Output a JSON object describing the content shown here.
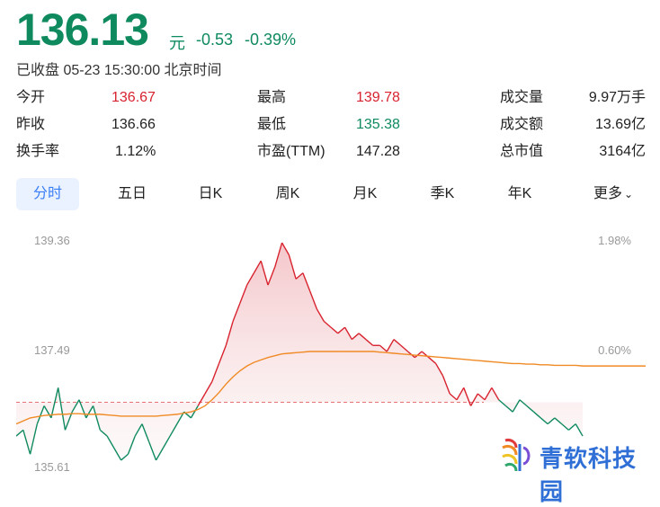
{
  "quote": {
    "price": "136.13",
    "unit": "元",
    "change": "-0.53",
    "change_pct": "-0.39%",
    "status": "已收盘 05-23 15:30:00 北京时间"
  },
  "stats": [
    [
      {
        "label": "今开",
        "value": "136.67"
      },
      {
        "label": "最高",
        "value": "139.78"
      },
      {
        "label": "成交量",
        "value": "9.97万手"
      }
    ],
    [
      {
        "label": "昨收",
        "value": "136.66"
      },
      {
        "label": "最低",
        "value": "135.38"
      },
      {
        "label": "成交额",
        "value": "13.69亿"
      }
    ],
    [
      {
        "label": "换手率",
        "value": "1.12%"
      },
      {
        "label": "市盈(TTM)",
        "value": "147.28"
      },
      {
        "label": "总市值",
        "value": "3164亿"
      }
    ]
  ],
  "tabs": [
    "分时",
    "五日",
    "日K",
    "周K",
    "月K",
    "季K",
    "年K",
    "更多"
  ],
  "chart_data": {
    "type": "line",
    "y_left_ticks": [
      "139.36",
      "137.49",
      "135.61"
    ],
    "y_right_ticks": [
      "1.98%",
      "0.60%"
    ],
    "series": [
      {
        "name": "price",
        "values": [
          136.1,
          136.2,
          135.8,
          136.3,
          136.6,
          136.4,
          136.9,
          136.2,
          136.5,
          136.7,
          136.4,
          136.6,
          136.2,
          136.1,
          135.9,
          135.7,
          135.8,
          136.1,
          136.3,
          136.0,
          135.7,
          135.9,
          136.1,
          136.3,
          136.5,
          136.4,
          136.6,
          136.8,
          137.0,
          137.3,
          137.6,
          138.0,
          138.3,
          138.6,
          138.8,
          139.0,
          138.6,
          138.9,
          139.3,
          139.1,
          138.7,
          138.8,
          138.5,
          138.2,
          138.0,
          137.9,
          137.8,
          137.9,
          137.7,
          137.8,
          137.7,
          137.6,
          137.6,
          137.5,
          137.7,
          137.6,
          137.5,
          137.4,
          137.5,
          137.4,
          137.3,
          137.1,
          136.8,
          136.7,
          136.9,
          136.6,
          136.8,
          136.7,
          136.9,
          136.7,
          136.6,
          136.5,
          136.7,
          136.6,
          136.5,
          136.4,
          136.3,
          136.4,
          136.3,
          136.2,
          136.3,
          136.1
        ]
      },
      {
        "name": "average",
        "values": [
          136.3,
          136.35,
          136.4,
          136.42,
          136.44,
          136.45,
          136.46,
          136.46,
          136.47,
          136.47,
          136.46,
          136.46,
          136.46,
          136.45,
          136.44,
          136.43,
          136.43,
          136.43,
          136.43,
          136.43,
          136.43,
          136.44,
          136.45,
          136.46,
          136.48,
          136.5,
          136.54,
          136.6,
          136.7,
          136.82,
          136.96,
          137.08,
          137.18,
          137.26,
          137.32,
          137.36,
          137.4,
          137.43,
          137.46,
          137.47,
          137.48,
          137.49,
          137.5,
          137.5,
          137.5,
          137.5,
          137.5,
          137.5,
          137.5,
          137.5,
          137.5,
          137.5,
          137.49,
          137.48,
          137.47,
          137.46,
          137.45,
          137.44,
          137.43,
          137.42,
          137.41,
          137.4,
          137.39,
          137.38,
          137.37,
          137.36,
          137.35,
          137.34,
          137.33,
          137.32,
          137.31,
          137.3,
          137.3,
          137.29,
          137.29,
          137.28,
          137.28,
          137.27,
          137.27,
          137.27,
          137.27,
          137.26
        ]
      }
    ],
    "prev_close": 136.66,
    "ylim": [
      135.61,
      139.36
    ],
    "colors": {
      "up": "#d8232f",
      "down": "#0f8a5f",
      "average": "#f08a24",
      "prev_close_line": "#e57373"
    }
  },
  "watermark": "青软科技园"
}
